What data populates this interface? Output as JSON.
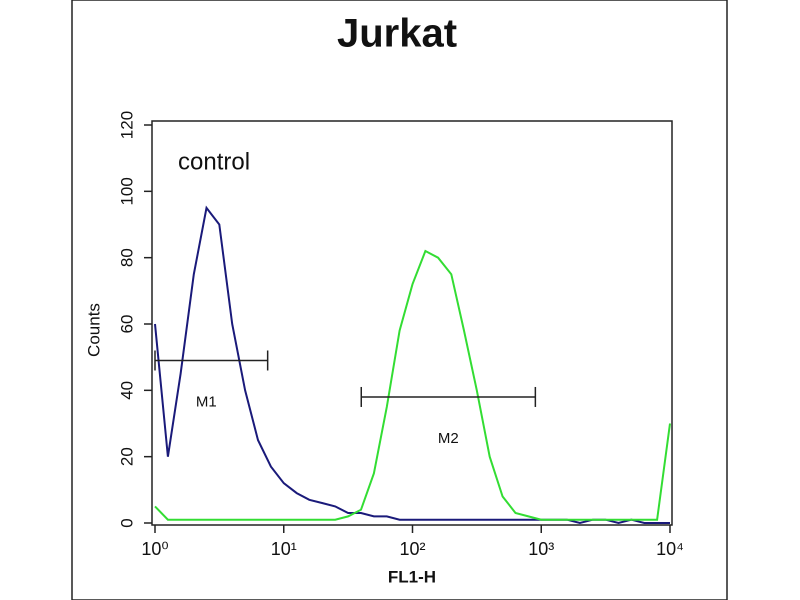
{
  "chart_data": {
    "type": "line",
    "title": "Jurkat",
    "xlabel": "FL1-H",
    "ylabel": "Counts",
    "xscale": "log",
    "x": [
      1,
      1.26,
      1.58,
      2,
      2.51,
      3.16,
      3.98,
      5.01,
      6.31,
      7.94,
      10,
      12.6,
      15.8,
      20,
      25.1,
      31.6,
      39.8,
      50.1,
      63.1,
      79.4,
      100,
      126,
      158,
      200,
      251,
      316,
      398,
      501,
      631,
      794,
      1000,
      1259,
      1585,
      1995,
      2512,
      3162,
      3981,
      5012,
      6310,
      7943,
      10000
    ],
    "series": [
      {
        "name": "control",
        "color": "#1a1a7a",
        "values": [
          60,
          20,
          45,
          75,
          95,
          90,
          60,
          40,
          25,
          17,
          12,
          9,
          7,
          6,
          5,
          3,
          3,
          2,
          2,
          1,
          1,
          1,
          1,
          1,
          1,
          1,
          1,
          1,
          1,
          1,
          1,
          1,
          1,
          0,
          1,
          1,
          0,
          1,
          0,
          0,
          0
        ]
      },
      {
        "color": "#33dd33",
        "values": [
          5,
          1,
          1,
          1,
          1,
          1,
          1,
          1,
          1,
          1,
          1,
          1,
          1,
          1,
          1,
          2,
          4,
          15,
          35,
          58,
          72,
          82,
          80,
          75,
          58,
          40,
          20,
          8,
          3,
          2,
          1,
          1,
          1,
          1,
          1,
          1,
          1,
          1,
          1,
          1,
          30
        ]
      }
    ],
    "markers": [
      {
        "label": "M1",
        "x": [
          1,
          7.5
        ],
        "y": 49
      },
      {
        "label": "M2",
        "x": [
          40,
          900
        ],
        "y": 38
      }
    ],
    "xlim": [
      1,
      10000
    ],
    "xticks": [
      {
        "value": 1,
        "label": "10⁰"
      },
      {
        "value": 10,
        "label": "10¹"
      },
      {
        "value": 100,
        "label": "10²"
      },
      {
        "value": 1000,
        "label": "10³"
      },
      {
        "value": 10000,
        "label": "10⁴"
      }
    ],
    "ylim": [
      0,
      120
    ],
    "yticks": [
      0,
      20,
      40,
      60,
      80,
      100,
      120
    ]
  }
}
